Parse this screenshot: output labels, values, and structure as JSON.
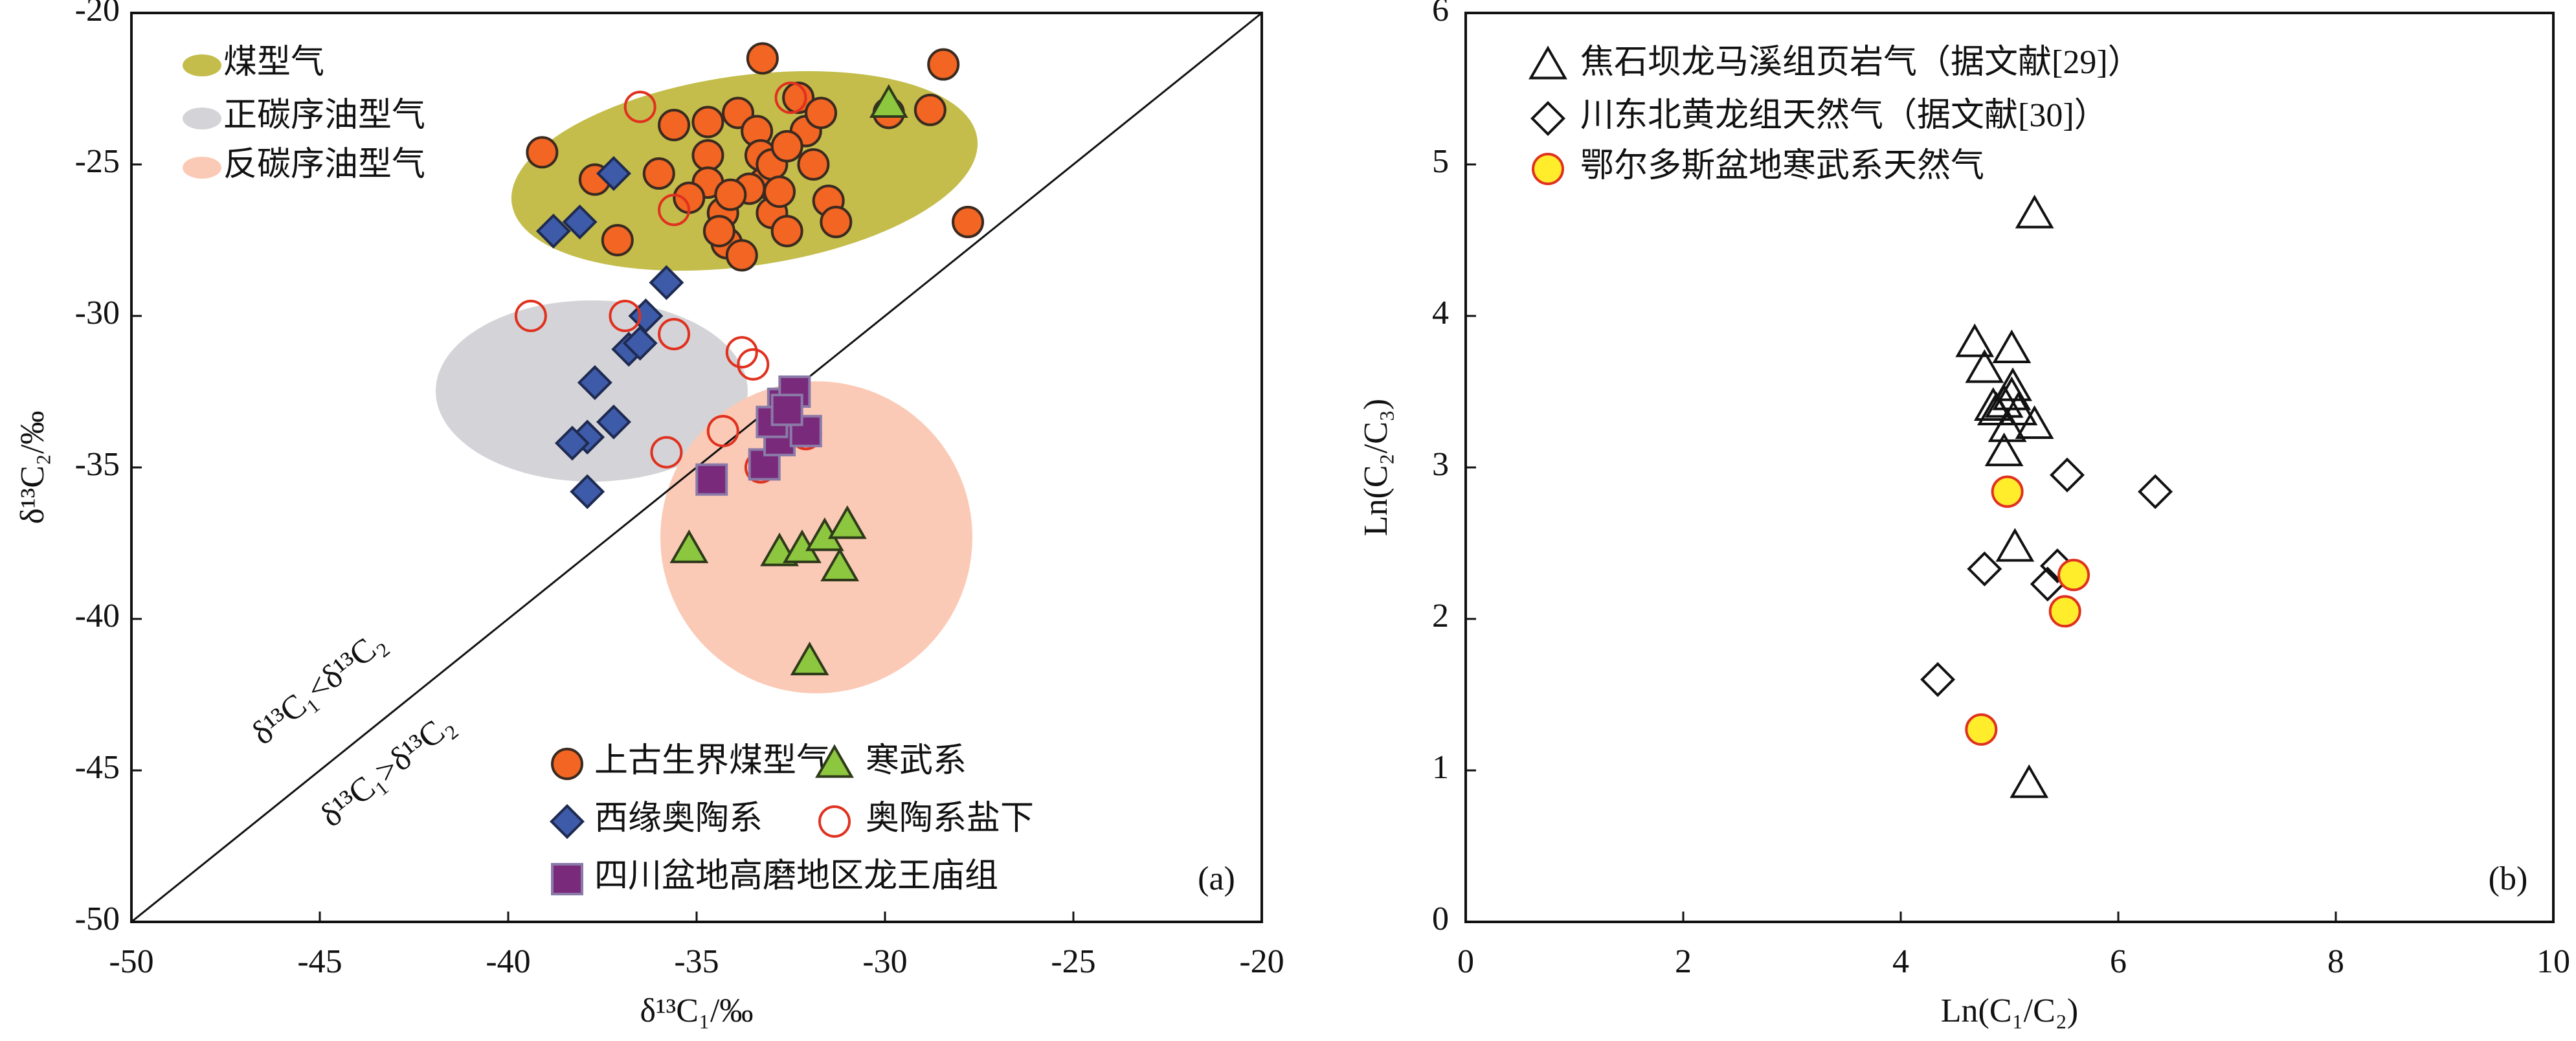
{
  "chart_data": [
    {
      "type": "scatter",
      "panel_label": "(a)",
      "xlabel": "δ¹³C₁/‰",
      "ylabel": "δ¹³C₂/‰",
      "xlim": [
        -50,
        -20
      ],
      "ylim": [
        -50,
        -20
      ],
      "xticks": [
        -50,
        -45,
        -40,
        -35,
        -30,
        -25,
        -20
      ],
      "yticks": [
        -50,
        -45,
        -40,
        -35,
        -30,
        -25,
        -20
      ],
      "annotations": [
        "δ¹³C₁<δ¹³C₂",
        "δ¹³C₁>δ¹³C₂"
      ],
      "regions": [
        {
          "name": "煤型气",
          "color": "#c4bd4c"
        },
        {
          "name": "正碳序油型气",
          "color": "#d4d4d8"
        },
        {
          "name": "反碳序油型气",
          "color": "#fbcab6"
        }
      ],
      "series": [
        {
          "name": "上古生界煤型气",
          "marker": "circle",
          "color": "#f26522",
          "edgecolor": "#3a2a20",
          "x": [
            -33.25,
            -28.45,
            -39.1,
            -37.7,
            -37.1,
            -36.0,
            -35.6,
            -34.7,
            -34.7,
            -34.7,
            -34.3,
            -34.2,
            -33.8,
            -33.9,
            -33.4,
            -33.3,
            -33.2,
            -33.0,
            -32.6,
            -32.3,
            -32.1,
            -31.9,
            -31.7,
            -31.5,
            -31.3,
            -33.0,
            -33.6,
            -32.8,
            -34.1,
            -34.4,
            -28.8,
            -27.8,
            -29.9,
            -35.2,
            -32.6
          ],
          "y": [
            -21.5,
            -21.7,
            -24.6,
            -25.5,
            -27.5,
            -25.3,
            -23.7,
            -23.6,
            -24.7,
            -25.6,
            -26.6,
            -27.6,
            -28.0,
            -23.3,
            -23.9,
            -24.7,
            -25.6,
            -26.6,
            -27.2,
            -22.8,
            -23.9,
            -25.0,
            -23.3,
            -26.2,
            -26.9,
            -25.0,
            -25.8,
            -25.9,
            -26.0,
            -27.2,
            -23.2,
            -26.9,
            -23.3,
            -26.1,
            -24.4
          ]
        },
        {
          "name": "西缘奥陶系",
          "marker": "diamond",
          "color": "#3e5ba9",
          "edgecolor": "#1e2a50",
          "x": [
            -37.2,
            -38.1,
            -38.8,
            -35.8,
            -36.35,
            -36.8,
            -36.5,
            -37.7,
            -37.2,
            -37.9,
            -38.3,
            -37.9
          ],
          "y": [
            -25.3,
            -26.9,
            -27.2,
            -28.9,
            -30.0,
            -31.1,
            -30.9,
            -32.2,
            -33.5,
            -34.0,
            -34.2,
            -35.8
          ]
        },
        {
          "name": "寒武系",
          "marker": "triangle",
          "color": "#8dc63f",
          "edgecolor": "#2e3a1a",
          "x": [
            -29.9,
            -35.2,
            -32.8,
            -32.2,
            -31.6,
            -31.0,
            -31.2,
            -32.0
          ],
          "y": [
            -23.0,
            -37.7,
            -37.8,
            -37.7,
            -37.3,
            -36.9,
            -38.3,
            -41.4
          ]
        },
        {
          "name": "奥陶系盐下",
          "marker": "circle",
          "color": "none",
          "edgecolor": "#e0311f",
          "x": [
            -36.5,
            -39.4,
            -36.9,
            -35.6,
            -35.6,
            -33.8,
            -33.5,
            -35.8,
            -34.3,
            -33.3,
            -32.1,
            -32.5
          ],
          "y": [
            -23.1,
            -30.0,
            -30.0,
            -30.6,
            -26.5,
            -31.2,
            -31.6,
            -34.5,
            -33.8,
            -35.0,
            -33.9,
            -22.8
          ]
        },
        {
          "name": "四川盆地高磨地区龙王庙组",
          "marker": "square",
          "color": "#7a2a7a",
          "edgecolor": "#8a7aa8",
          "x": [
            -34.6,
            -33.2,
            -32.8,
            -32.7,
            -32.4,
            -32.1,
            -33.0,
            -32.6
          ],
          "y": [
            -35.4,
            -34.9,
            -34.1,
            -32.9,
            -32.5,
            -33.8,
            -33.5,
            -33.1
          ]
        }
      ]
    },
    {
      "type": "scatter",
      "panel_label": "(b)",
      "xlabel": "Ln(C₁/C₂)",
      "ylabel": "Ln(C₂/C₃)",
      "xlim": [
        0,
        10
      ],
      "ylim": [
        0,
        6
      ],
      "xticks": [
        0,
        2,
        4,
        6,
        8,
        10
      ],
      "yticks": [
        0,
        1,
        2,
        3,
        4,
        5,
        6
      ],
      "series": [
        {
          "name": "焦石坝龙马溪组页岩气（据文献[29]）",
          "marker": "triangle",
          "color": "none",
          "edgecolor": "#111111",
          "x": [
            5.23,
            4.68,
            5.02,
            4.77,
            5.03,
            4.95,
            4.88,
            5.08,
            5.02,
            5.23,
            4.98,
            4.95,
            5.05,
            5.18,
            4.85
          ],
          "y": [
            4.67,
            3.82,
            3.78,
            3.65,
            3.53,
            3.42,
            3.37,
            3.37,
            3.47,
            3.28,
            3.26,
            3.1,
            2.47,
            0.91,
            3.4
          ]
        },
        {
          "name": "川东北黄龙组天然气（据文献[30]）",
          "marker": "diamond",
          "color": "none",
          "edgecolor": "#111111",
          "x": [
            5.53,
            6.34,
            4.77,
            5.44,
            5.35,
            4.34
          ],
          "y": [
            2.95,
            2.84,
            2.33,
            2.35,
            2.23,
            1.6
          ]
        },
        {
          "name": "鄂尔多斯盆地寒武系天然气",
          "marker": "circle",
          "color": "#ffed2b",
          "edgecolor": "#e0311f",
          "x": [
            4.98,
            5.59,
            5.51,
            4.74
          ],
          "y": [
            2.84,
            2.29,
            2.05,
            1.27
          ]
        }
      ]
    }
  ]
}
